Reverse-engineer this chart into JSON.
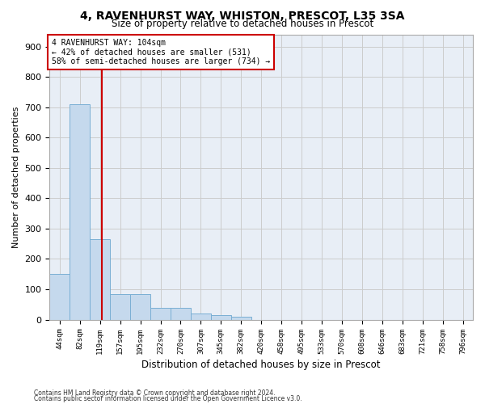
{
  "title": "4, RAVENHURST WAY, WHISTON, PRESCOT, L35 3SA",
  "subtitle": "Size of property relative to detached houses in Prescot",
  "xlabel": "Distribution of detached houses by size in Prescot",
  "ylabel": "Number of detached properties",
  "bar_labels": [
    "44sqm",
    "82sqm",
    "119sqm",
    "157sqm",
    "195sqm",
    "232sqm",
    "270sqm",
    "307sqm",
    "345sqm",
    "382sqm",
    "420sqm",
    "458sqm",
    "495sqm",
    "533sqm",
    "570sqm",
    "608sqm",
    "646sqm",
    "683sqm",
    "721sqm",
    "758sqm",
    "796sqm"
  ],
  "bar_values": [
    150,
    710,
    265,
    85,
    85,
    40,
    40,
    20,
    15,
    10,
    0,
    0,
    0,
    0,
    0,
    0,
    0,
    0,
    0,
    0,
    0
  ],
  "bar_color": "#c5d9ed",
  "bar_edge_color": "#7aafd4",
  "grid_color": "#cccccc",
  "bg_color": "#e8eef6",
  "annotation_text": "4 RAVENHURST WAY: 104sqm\n← 42% of detached houses are smaller (531)\n58% of semi-detached houses are larger (734) →",
  "annotation_box_color": "#ffffff",
  "annotation_border_color": "#cc0000",
  "ylim": [
    0,
    940
  ],
  "yticks": [
    0,
    100,
    200,
    300,
    400,
    500,
    600,
    700,
    800,
    900
  ],
  "footer_line1": "Contains HM Land Registry data © Crown copyright and database right 2024.",
  "footer_line2": "Contains public sector information licensed under the Open Government Licence v3.0."
}
